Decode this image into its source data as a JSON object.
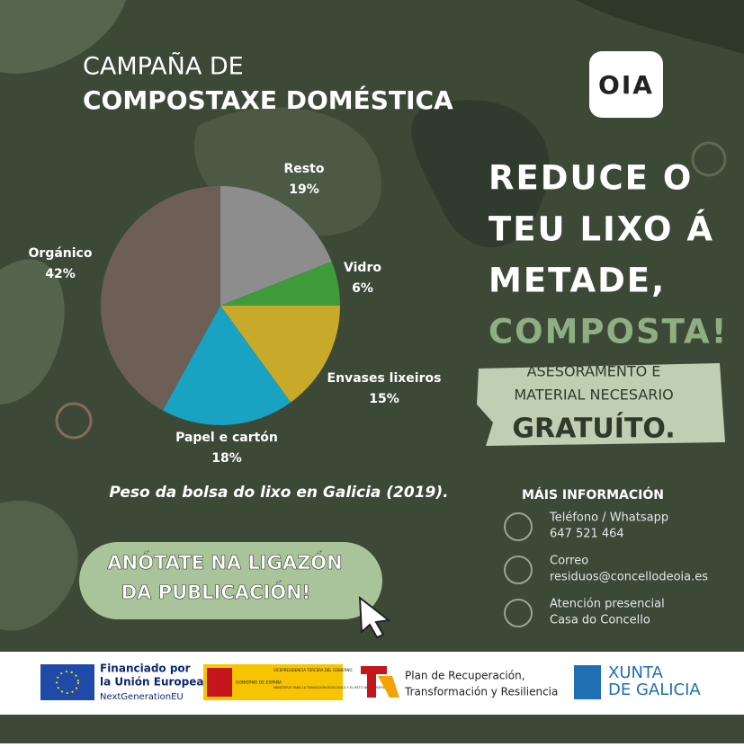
{
  "chart_data": {
    "type": "pie",
    "categories": [
      "Resto",
      "Vidro",
      "Envases lixeiros",
      "Papel e cartón",
      "Orgánico"
    ],
    "values": [
      19,
      6,
      15,
      18,
      42
    ],
    "value_labels": [
      "19%",
      "6%",
      "15%",
      "18%",
      "42%"
    ],
    "colors": [
      "#8d8d8d",
      "#3f9a3a",
      "#c8a92a",
      "#19a2c1",
      "#6d5f55"
    ],
    "caption": "Peso da bolsa do lixo en Galicia (2019)."
  },
  "header": {
    "title_line1": "CAMPAÑA DE",
    "title_line2": "COMPOSTAXE DOMÉSTICA",
    "logo": "OIA"
  },
  "headline": {
    "lines": [
      "REDUCE O",
      "TEU LIXO Á",
      "METADE,"
    ],
    "accent": "COMPOSTA!"
  },
  "banner": {
    "lines": [
      "ASESORAMENTO E",
      "MATERIAL NECESARIO"
    ],
    "emphasis": "GRATUÍTO."
  },
  "button": {
    "lines": [
      "ANÓTATE NA LIGAZÓN",
      "DA PUBLICACIÓN!"
    ]
  },
  "contact": {
    "title": "MÁIS INFORMACIÓN",
    "items": [
      {
        "label": "Teléfono / Whatsapp",
        "value": "647 521 464"
      },
      {
        "label": "Correo",
        "value": "residuos@concellodeoia.es"
      },
      {
        "label": "Atención presencial",
        "value": "Casa do Concello"
      }
    ]
  },
  "footer": {
    "eu": [
      "Financiado por",
      "la Unión Europea",
      "NextGenerationEU"
    ],
    "spain": [
      "GOBIERNO DE ESPAÑA",
      "VICEPRESIDENCIA TERCERA DEL GOBIERNO",
      "MINISTERIO PARA LA TRANSICIÓN ECOLÓGICA Y EL RETO DEMOGRÁFICO"
    ],
    "plan": [
      "Plan de Recuperación,",
      "Transformación y Resiliencia"
    ],
    "xunta": [
      "XUNTA",
      "DE GALICIA"
    ]
  }
}
